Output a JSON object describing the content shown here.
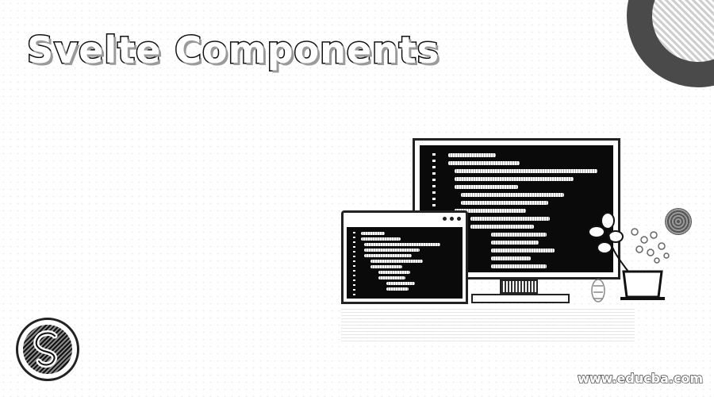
{
  "banner": {
    "title": "Svelte Components",
    "site_url": "www.educba.com"
  },
  "icons": {
    "logo": "svelte-logo-icon",
    "monitor": "code-monitor-illustration",
    "window": "code-window-illustration",
    "plant": "potted-plant-illustration"
  },
  "colors": {
    "background": "#ffffff",
    "ink": "#111111",
    "screen": "#0a0a0a"
  }
}
